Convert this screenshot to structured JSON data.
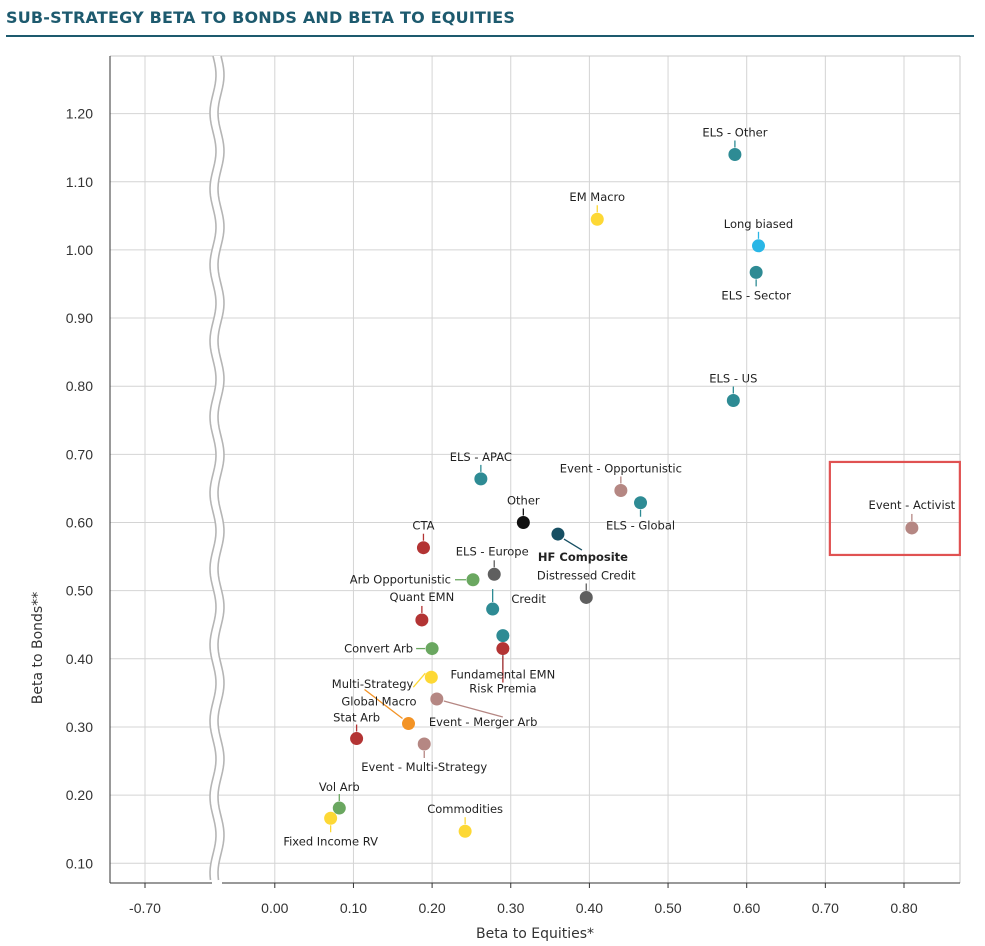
{
  "title": "SUB-STRATEGY BETA TO BONDS AND BETA TO EQUITIES",
  "colors": {
    "title": "#1d5a6e",
    "teal": "#2e8b94",
    "yellow": "#fdd835",
    "cyan": "#29b6e6",
    "red": "#b33434",
    "green": "#6aa760",
    "mauve": "#b58783",
    "gray": "#5f5f5f",
    "black": "#111111",
    "navy": "#174f63",
    "orange": "#f39325",
    "highlight": "#e05252"
  },
  "chart_data": {
    "type": "scatter",
    "xlabel": "Beta to Equities*",
    "ylabel": "Beta to Bonds**",
    "x_ticks": [
      "-0.70",
      "0.00",
      "0.10",
      "0.20",
      "0.30",
      "0.40",
      "0.50",
      "0.60",
      "0.70",
      "0.80"
    ],
    "y_ticks": [
      "0.10",
      "0.20",
      "0.30",
      "0.40",
      "0.50",
      "0.60",
      "0.70",
      "0.80",
      "0.90",
      "1.00",
      "1.10",
      "1.20"
    ],
    "xlim": [
      -0.86,
      0.87
    ],
    "ylim": [
      0.1,
      1.29
    ],
    "axis_break": "between -0.70 and 0.00",
    "grid": true,
    "highlighted": "Event - Activist",
    "points": [
      {
        "name": "ELS - Other",
        "x": 0.585,
        "y": 1.14,
        "color": "teal"
      },
      {
        "name": "EM Macro",
        "x": 0.41,
        "y": 1.045,
        "color": "yellow"
      },
      {
        "name": "Long biased",
        "x": 0.615,
        "y": 1.006,
        "color": "cyan"
      },
      {
        "name": "ELS - Sector",
        "x": 0.612,
        "y": 0.967,
        "color": "teal"
      },
      {
        "name": "ELS - US",
        "x": 0.583,
        "y": 0.779,
        "color": "teal"
      },
      {
        "name": "ELS - APAC",
        "x": 0.262,
        "y": 0.664,
        "color": "teal"
      },
      {
        "name": "Event - Opportunistic",
        "x": 0.44,
        "y": 0.647,
        "color": "mauve"
      },
      {
        "name": "ELS - Global",
        "x": 0.465,
        "y": 0.629,
        "color": "teal"
      },
      {
        "name": "Event - Activist",
        "x": 0.81,
        "y": 0.592,
        "color": "mauve"
      },
      {
        "name": "Other",
        "x": 0.316,
        "y": 0.6,
        "color": "black"
      },
      {
        "name": "HF Composite",
        "x": 0.36,
        "y": 0.583,
        "color": "navy"
      },
      {
        "name": "CTA",
        "x": 0.189,
        "y": 0.563,
        "color": "red"
      },
      {
        "name": "ELS - Europe",
        "x": 0.279,
        "y": 0.524,
        "color": "gray"
      },
      {
        "name": "Arb Opportunistic",
        "x": 0.252,
        "y": 0.516,
        "color": "green"
      },
      {
        "name": "Distressed Credit",
        "x": 0.396,
        "y": 0.49,
        "color": "gray"
      },
      {
        "name": "Credit",
        "x": 0.277,
        "y": 0.473,
        "color": "teal"
      },
      {
        "name": "Quant EMN",
        "x": 0.187,
        "y": 0.457,
        "color": "red"
      },
      {
        "name": "Fundamental EMN",
        "x": 0.29,
        "y": 0.434,
        "color": "teal"
      },
      {
        "name": "Risk Premia",
        "x": 0.29,
        "y": 0.415,
        "color": "red"
      },
      {
        "name": "Convert Arb",
        "x": 0.2,
        "y": 0.415,
        "color": "green"
      },
      {
        "name": "Multi-Strategy",
        "x": 0.199,
        "y": 0.373,
        "color": "yellow"
      },
      {
        "name": "Global Macro",
        "x": 0.17,
        "y": 0.305,
        "color": "orange"
      },
      {
        "name": "Event - Merger Arb",
        "x": 0.206,
        "y": 0.341,
        "color": "mauve"
      },
      {
        "name": "Stat Arb",
        "x": 0.104,
        "y": 0.283,
        "color": "red"
      },
      {
        "name": "Event - Multi-Strategy",
        "x": 0.19,
        "y": 0.275,
        "color": "mauve"
      },
      {
        "name": "Vol Arb",
        "x": 0.082,
        "y": 0.181,
        "color": "green"
      },
      {
        "name": "Fixed Income RV",
        "x": 0.071,
        "y": 0.166,
        "color": "yellow"
      },
      {
        "name": "Commodities",
        "x": 0.242,
        "y": 0.147,
        "color": "yellow"
      }
    ]
  }
}
